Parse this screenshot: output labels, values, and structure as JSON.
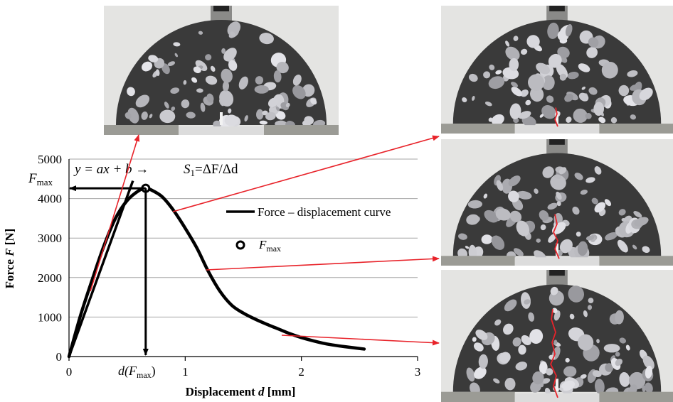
{
  "chart_data": {
    "type": "line",
    "xlabel": "Displacement d [mm]",
    "xlabel_parts": [
      "Displacement ",
      "d",
      " [mm]"
    ],
    "ylabel": "Force F [N]",
    "ylabel_parts": [
      "Force ",
      "F",
      " [N]"
    ],
    "xlim": [
      0,
      3
    ],
    "ylim": [
      0,
      5000
    ],
    "xticks": [
      0,
      1,
      2,
      3
    ],
    "yticks": [
      0,
      1000,
      2000,
      3000,
      4000,
      5000
    ],
    "grid": "horizontal",
    "legend_position": "right",
    "series": [
      {
        "name": "Force – displacement curve",
        "x": [
          0,
          0.1,
          0.2,
          0.3,
          0.4,
          0.5,
          0.6,
          0.66,
          0.7,
          0.8,
          0.9,
          1.0,
          1.1,
          1.2,
          1.3,
          1.4,
          1.5,
          1.6,
          1.7,
          1.8,
          1.9,
          2.0,
          2.1,
          2.2,
          2.3,
          2.4,
          2.54
        ],
        "y": [
          0,
          1050,
          1950,
          2800,
          3500,
          3950,
          4200,
          4260,
          4230,
          4050,
          3700,
          3250,
          2750,
          2150,
          1650,
          1300,
          1100,
          950,
          820,
          700,
          580,
          480,
          400,
          330,
          280,
          240,
          190
        ]
      }
    ],
    "fmax_point": {
      "name": "F_max",
      "x": 0.66,
      "y": 4260
    },
    "tangent_line": {
      "x": [
        0,
        0.55
      ],
      "y": [
        0,
        4450
      ]
    },
    "annotations": {
      "fmax_label": "F",
      "fmax_sub": "max",
      "equation": "y = ax + b →",
      "slope_S": "S",
      "slope_sub": "1",
      "slope_rest": "=ΔF/Δd",
      "dfmax_pre": "d(F",
      "dfmax_sub": "max",
      "dfmax_post": ")"
    },
    "legend": {
      "curve_label": "Force – displacement curve",
      "point_label": "F",
      "point_sub": "max"
    }
  },
  "photos": [
    {
      "name": "specimen-photo-initial",
      "crack": "none"
    },
    {
      "name": "specimen-photo-stage-1",
      "crack": "small"
    },
    {
      "name": "specimen-photo-stage-2",
      "crack": "medium"
    },
    {
      "name": "specimen-photo-stage-3",
      "crack": "long"
    }
  ],
  "colors": {
    "curve": "#000000",
    "arrows": "#e8232a",
    "crack": "#e8232a",
    "grid": "#a6a6a6",
    "concrete": "#3a3a3a",
    "steel": "#9b9b95",
    "photo_bg": "#e4e4e2"
  }
}
